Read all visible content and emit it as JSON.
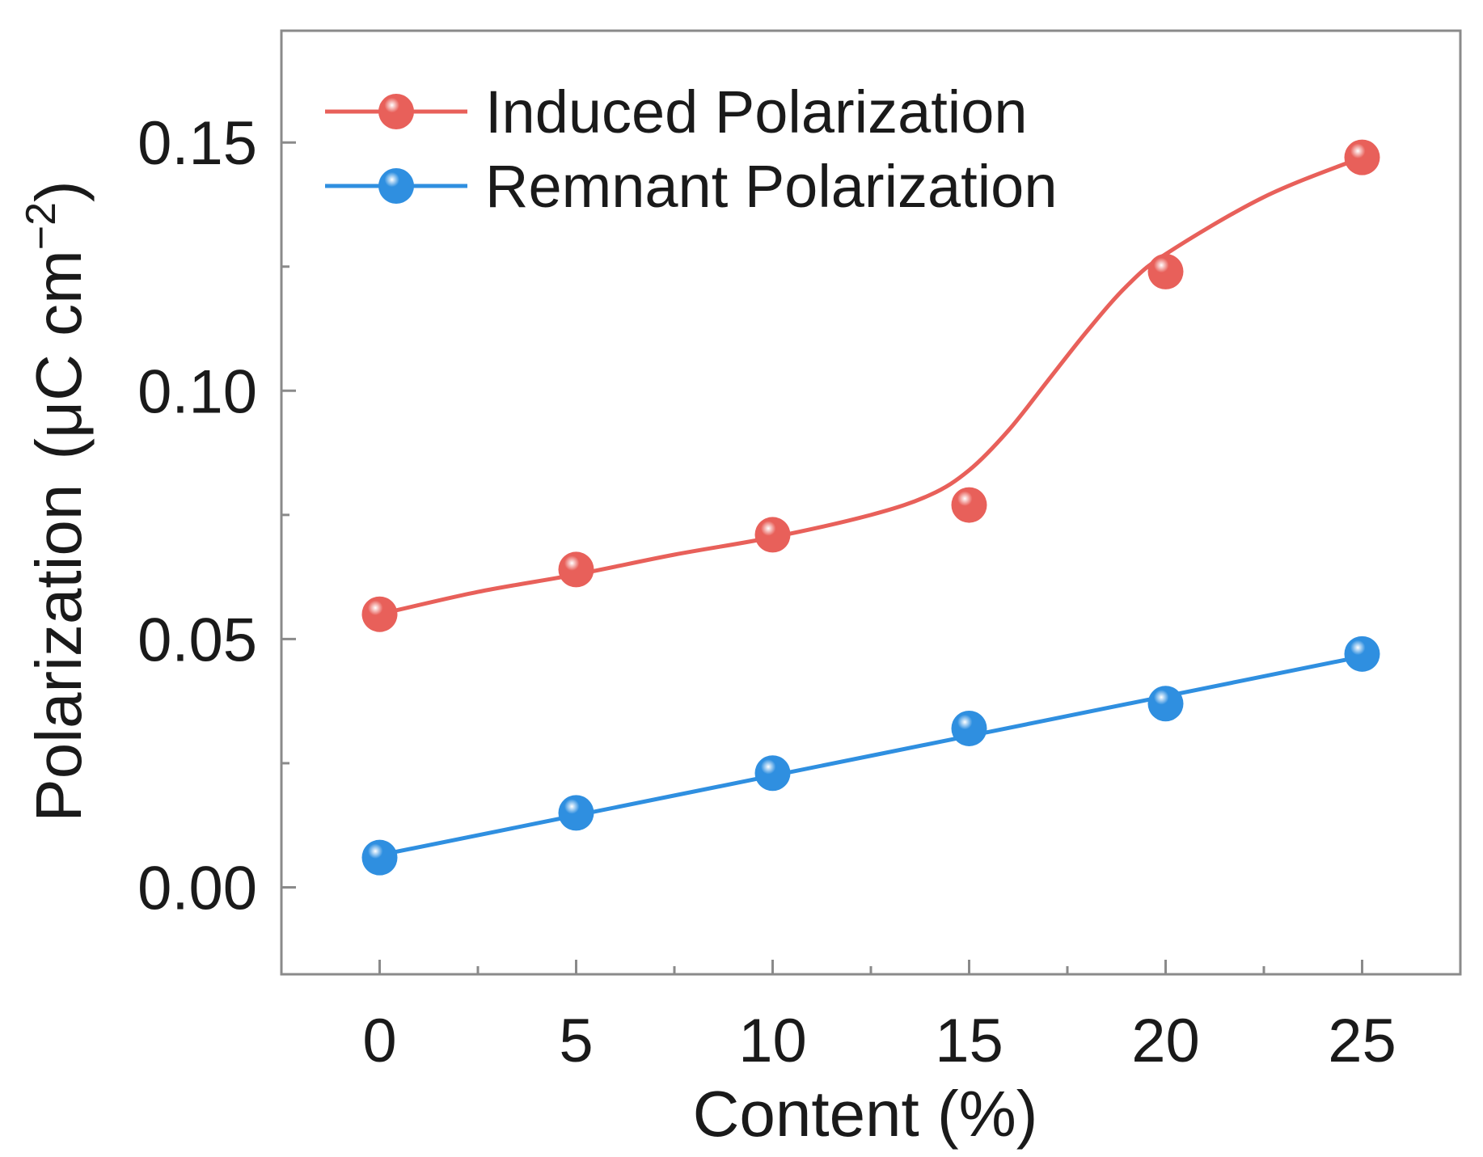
{
  "chart_data": {
    "type": "line",
    "title": "",
    "xlabel": "Content (%)",
    "ylabel_main": "Polarization",
    "ylabel_unit": "(μC cm",
    "ylabel_exp": "−2",
    "ylabel_close": ")",
    "ylabel": "Polarization (μC cm−2)",
    "x": [
      0,
      5,
      10,
      15,
      20,
      25
    ],
    "xlim": [
      -2.5,
      27.5
    ],
    "ylim": [
      -0.0175,
      0.1725
    ],
    "x_ticks": [
      0,
      5,
      10,
      15,
      20,
      25
    ],
    "x_tick_labels": [
      "0",
      "5",
      "10",
      "15",
      "20",
      "25"
    ],
    "y_ticks": [
      0.0,
      0.05,
      0.1,
      0.15
    ],
    "y_tick_labels": [
      "0.00",
      "0.05",
      "0.10",
      "0.15"
    ],
    "grid": false,
    "legend_position": "top-left",
    "series": [
      {
        "name": "Induced Polarization",
        "color": "#e8605a",
        "values": [
          0.055,
          0.064,
          0.071,
          0.077,
          0.124,
          0.147
        ],
        "fit_curve": [
          [
            0,
            0.055
          ],
          [
            2.5,
            0.0595
          ],
          [
            5,
            0.063
          ],
          [
            7.5,
            0.067
          ],
          [
            10,
            0.0705
          ],
          [
            12.5,
            0.075
          ],
          [
            14,
            0.079
          ],
          [
            15,
            0.084
          ],
          [
            16,
            0.092
          ],
          [
            17,
            0.102
          ],
          [
            18,
            0.112
          ],
          [
            19,
            0.121
          ],
          [
            20,
            0.1275
          ],
          [
            22.5,
            0.139
          ],
          [
            25,
            0.147
          ]
        ]
      },
      {
        "name": "Remnant Polarization",
        "color": "#2f8fe0",
        "values": [
          0.006,
          0.015,
          0.023,
          0.032,
          0.037,
          0.047
        ],
        "fit_curve": [
          [
            0,
            0.0065
          ],
          [
            5,
            0.0145
          ],
          [
            10,
            0.0225
          ],
          [
            15,
            0.0305
          ],
          [
            20,
            0.0385
          ],
          [
            25,
            0.0465
          ]
        ]
      }
    ]
  }
}
